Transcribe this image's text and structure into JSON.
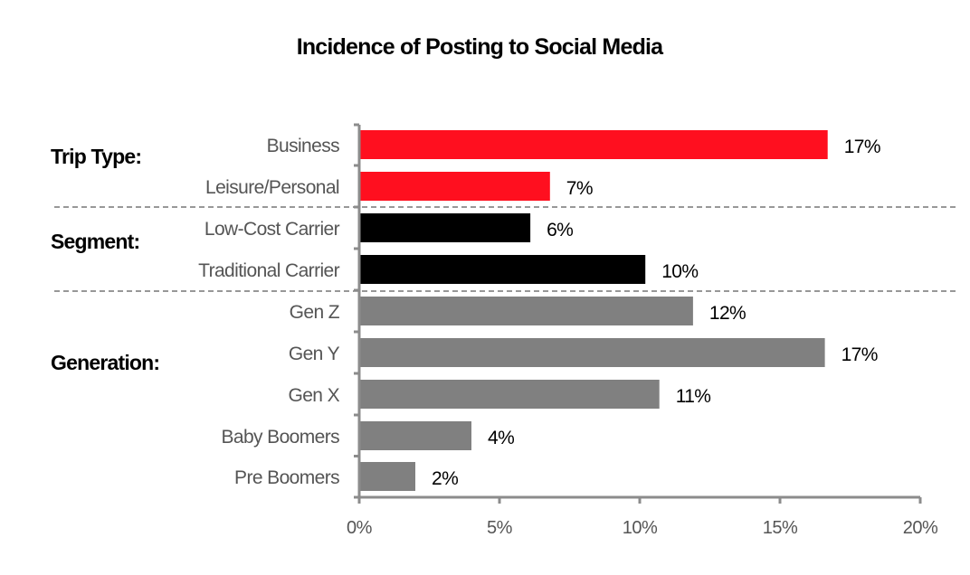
{
  "chart_data": {
    "type": "bar",
    "orientation": "horizontal",
    "title": "Incidence of Posting to Social Media",
    "xlim": [
      0,
      20
    ],
    "x_ticks": [
      "0%",
      "5%",
      "10%",
      "15%",
      "20%"
    ],
    "value_suffix": "%",
    "groups": [
      {
        "label": "Trip Type:",
        "color": "#ff0f1f",
        "categories": [
          "Business",
          "Leisure/Personal"
        ],
        "values": [
          17,
          7
        ],
        "bar_values": [
          16.7,
          6.8
        ]
      },
      {
        "label": "Segment:",
        "color": "#000000",
        "categories": [
          "Low-Cost Carrier",
          "Traditional Carrier"
        ],
        "values": [
          6,
          10
        ],
        "bar_values": [
          6.1,
          10.2
        ]
      },
      {
        "label": "Generation:",
        "color": "#808080",
        "categories": [
          "Gen Z",
          "Gen Y",
          "Gen X",
          "Baby Boomers",
          "Pre Boomers"
        ],
        "values": [
          12,
          17,
          11,
          4,
          2
        ],
        "bar_values": [
          11.9,
          16.6,
          10.7,
          4.0,
          2.0
        ]
      }
    ]
  }
}
